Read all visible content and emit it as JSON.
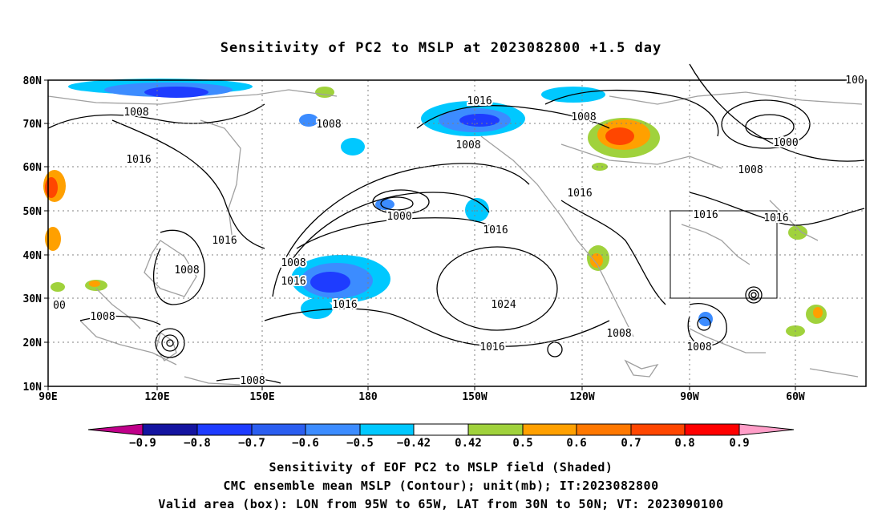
{
  "title": "Sensitivity of PC2 to MSLP at 2023082800 +1.5 day",
  "map": {
    "lat_labels": [
      "80N",
      "70N",
      "60N",
      "50N",
      "40N",
      "30N",
      "20N",
      "10N"
    ],
    "lon_labels": [
      "90E",
      "120E",
      "150E",
      "180",
      "150W",
      "120W",
      "90W",
      "60W"
    ],
    "contour_labels": [
      "1008",
      "1008",
      "1016",
      "1016",
      "1008",
      "1008",
      "1016",
      "1000",
      "1008",
      "1016",
      "1016",
      "1024",
      "1016",
      "1000",
      "1016",
      "1016",
      "1008",
      "1008",
      "1008",
      "1016",
      "1016",
      "1008",
      "1008",
      "00",
      "1008",
      "1008",
      "1016",
      "100"
    ],
    "valid_box": {
      "lon": [
        "95W",
        "65W"
      ],
      "lat": [
        "30N",
        "50N"
      ]
    },
    "colors": {
      "contour": "#000000",
      "coast": "#a0a0a0",
      "grid": "#808080"
    }
  },
  "colorbar": {
    "labels": [
      "−0.9",
      "−0.8",
      "−0.7",
      "−0.6",
      "−0.5",
      "−0.42",
      "0.42",
      "0.5",
      "0.6",
      "0.7",
      "0.8",
      "0.9"
    ],
    "colors": [
      "#c0008a",
      "#1414a0",
      "#1e3cff",
      "#2b5ef0",
      "#3c8cff",
      "#30b4ff",
      "#00c8ff",
      "#ffffff",
      "#a0d23c",
      "#ffa000",
      "#ff7800",
      "#ff4600",
      "#ff0000",
      "#ff9ec8"
    ]
  },
  "footer": {
    "line1": "Sensitivity of EOF PC2 to MSLP field (Shaded)",
    "line2": "CMC ensemble mean MSLP (Contour); unit(mb); IT:2023082800",
    "line3": "Valid area (box): LON from 95W to 65W, LAT from 30N to 50N; VT: 2023090100"
  }
}
